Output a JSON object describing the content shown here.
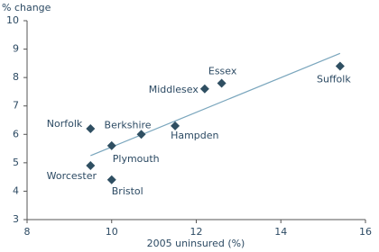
{
  "chart_data": {
    "type": "scatter",
    "y_label": "% change",
    "x_label": "2005 uninsured (%)",
    "labels": [
      "Norfolk",
      "Worcester",
      "Plymouth",
      "Bristol",
      "Berkshire",
      "Hampden",
      "Middlesex",
      "Essex",
      "Suffolk"
    ],
    "x": [
      9.5,
      9.5,
      10,
      10,
      10.7,
      11.5,
      12.2,
      12.6,
      15.4
    ],
    "y": [
      6.2,
      4.9,
      5.6,
      4.4,
      6.0,
      6.3,
      7.6,
      7.8,
      8.4
    ],
    "color": "#2f4f62",
    "trend_line": {
      "x": [
        9.5,
        15.4
      ],
      "y": [
        5.25,
        8.85
      ],
      "color": "#7aa6bd"
    },
    "xlim": [
      8,
      16
    ],
    "xticks": [
      8,
      10,
      12,
      14,
      16
    ],
    "ylim": [
      3,
      10
    ],
    "yticks": [
      3,
      4,
      5,
      6,
      7,
      8,
      9,
      10
    ],
    "grid": false
  }
}
